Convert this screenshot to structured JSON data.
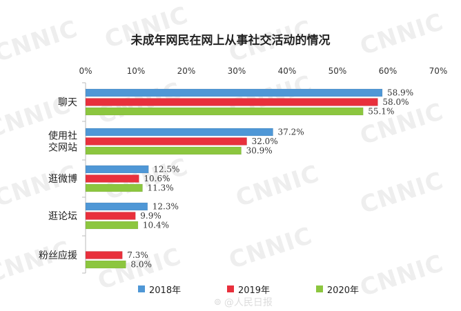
{
  "chart_data": {
    "type": "bar",
    "orientation": "horizontal",
    "title": "未成年网民在网上从事社交活动的情况",
    "categories": [
      "聊天",
      "使用社\n交网站",
      "逛微博",
      "逛论坛",
      "粉丝应援"
    ],
    "category_lines": [
      [
        "聊天"
      ],
      [
        "使用社",
        "交网站"
      ],
      [
        "逛微博"
      ],
      [
        "逛论坛"
      ],
      [
        "粉丝应援"
      ]
    ],
    "series": [
      {
        "name": "2018年",
        "color": "#4f97d6",
        "values": [
          58.9,
          37.2,
          12.5,
          12.3,
          null
        ]
      },
      {
        "name": "2019年",
        "color": "#e8303c",
        "values": [
          58.0,
          32.0,
          10.6,
          9.9,
          7.3
        ]
      },
      {
        "name": "2020年",
        "color": "#8cc63f",
        "values": [
          55.1,
          30.9,
          11.3,
          10.4,
          8.0
        ]
      }
    ],
    "value_labels": [
      [
        "58.9%",
        "58.0%",
        "55.1%"
      ],
      [
        "37.2%",
        "32.0%",
        "30.9%"
      ],
      [
        "12.5%",
        "10.6%",
        "11.3%"
      ],
      [
        "12.3%",
        "9.9%",
        "10.4%"
      ],
      [
        null,
        "7.3%",
        "8.0%"
      ]
    ],
    "xlim": [
      0,
      70
    ],
    "xticks": [
      "0%",
      "10%",
      "20%",
      "30%",
      "40%",
      "50%",
      "60%",
      "70%"
    ],
    "xlabel": "",
    "ylabel": "",
    "legend_position": "bottom"
  },
  "watermark": {
    "text": "CNNIC"
  },
  "credit": {
    "text": "@人民日报"
  }
}
